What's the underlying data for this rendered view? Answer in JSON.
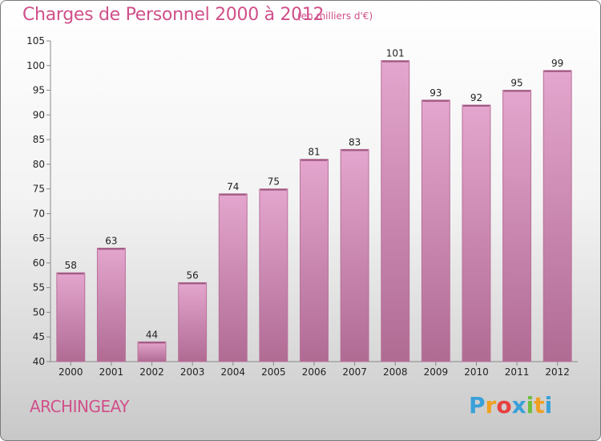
{
  "header": {
    "title": "Charges de Personnel 2000 à 2012",
    "unit": "(en milliers d'€)"
  },
  "commune": "ARCHINGEAY",
  "brand": {
    "letters": [
      "P",
      "r",
      "o",
      "x",
      "i",
      "t",
      "i"
    ],
    "colors": [
      "#3aa0d8",
      "#f0a020",
      "#e84040",
      "#3aa0d8",
      "#6cbf3c",
      "#f0a020",
      "#3aa0d8"
    ]
  },
  "chart_data": {
    "type": "bar",
    "categories": [
      "2000",
      "2001",
      "2002",
      "2003",
      "2004",
      "2005",
      "2006",
      "2007",
      "2008",
      "2009",
      "2010",
      "2011",
      "2012"
    ],
    "values": [
      58,
      63,
      44,
      56,
      74,
      75,
      81,
      83,
      101,
      93,
      92,
      95,
      99
    ],
    "title": "Charges de Personnel 2000 à 2012",
    "ylim": [
      40,
      105
    ],
    "yticks": [
      40,
      45,
      50,
      55,
      60,
      65,
      70,
      75,
      80,
      85,
      90,
      95,
      100,
      105
    ],
    "grid": false,
    "bar_color": "#c97fae"
  }
}
